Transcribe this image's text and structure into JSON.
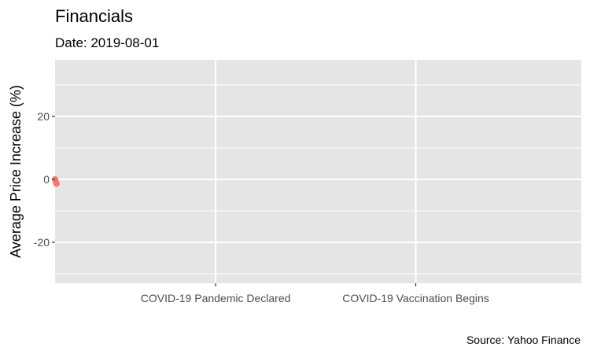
{
  "chart_data": {
    "type": "scatter",
    "title": "Financials",
    "subtitle": "Date: 2019-08-01",
    "xlabel": "",
    "ylabel": "Average Price Increase (%)",
    "caption": "Source: Yahoo Finance",
    "x_type": "date",
    "xlim": [
      "2019-08-01",
      "2021-08-01"
    ],
    "ylim": [
      -33,
      38
    ],
    "y_ticks": [
      -20,
      0,
      20
    ],
    "x_ticks": [
      {
        "x": "2020-03-11",
        "label": "COVID-19 Pandemic Declared"
      },
      {
        "x": "2020-12-14",
        "label": "COVID-19 Vaccination Begins"
      }
    ],
    "grid": true,
    "legend": "none",
    "colors": {
      "panel": "#e5e5e5",
      "grid": "#ffffff",
      "point": "#f8766d"
    },
    "series": [
      {
        "values": [
          {
            "x": "2019-08-01",
            "y": 0.0
          },
          {
            "x": "2019-08-02",
            "y": -0.8
          },
          {
            "x": "2019-08-03",
            "y": -1.4
          }
        ]
      }
    ]
  }
}
